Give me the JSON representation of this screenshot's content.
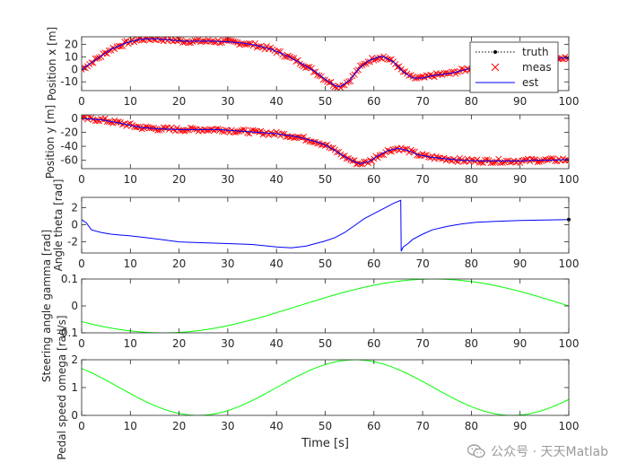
{
  "chart_data": [
    {
      "type": "line",
      "ylabel": "Position x [m]",
      "xlim": [
        0,
        100
      ],
      "ylim": [
        -17,
        26
      ],
      "yticks": [
        -10,
        0,
        10,
        20
      ],
      "xticks": [
        0,
        10,
        20,
        30,
        40,
        50,
        60,
        70,
        80,
        90,
        100
      ],
      "legend": {
        "position": "top-right",
        "entries": [
          "truth",
          "meas",
          "est"
        ]
      },
      "series": [
        {
          "name": "truth",
          "style": "dotted-black",
          "x": [
            0,
            3,
            6,
            9,
            12,
            15,
            18,
            21,
            24,
            27,
            30,
            33,
            36,
            39,
            42,
            45,
            48,
            50,
            52,
            53,
            55,
            57,
            59,
            61,
            62,
            64,
            66,
            68,
            70,
            72,
            74,
            76,
            78,
            80,
            82,
            84,
            86,
            88,
            90,
            92,
            94,
            96,
            98,
            100
          ],
          "y": [
            0,
            8,
            16,
            21,
            24,
            24.5,
            23.5,
            22.5,
            22.5,
            22.5,
            22,
            21,
            19,
            16,
            11,
            5,
            -2,
            -8,
            -13,
            -14,
            -9,
            1,
            7,
            10,
            10,
            6,
            -2,
            -7,
            -7,
            -5,
            -4,
            -3,
            -1,
            1,
            3,
            4.5,
            6,
            6.5,
            7,
            7.5,
            8,
            8.5,
            9,
            9
          ]
        },
        {
          "name": "est",
          "style": "solid-blue",
          "x": [
            0,
            3,
            6,
            9,
            12,
            15,
            18,
            21,
            24,
            27,
            30,
            33,
            36,
            39,
            42,
            45,
            48,
            50,
            52,
            53,
            55,
            57,
            59,
            61,
            62,
            64,
            66,
            68,
            70,
            72,
            74,
            76,
            78,
            80,
            82,
            84,
            86,
            88,
            90,
            92,
            94,
            96,
            98,
            100
          ],
          "y": [
            0,
            8,
            16,
            21,
            24,
            24.5,
            23.5,
            22.5,
            22.5,
            22.5,
            22,
            21,
            19,
            16,
            11,
            5,
            -2,
            -8,
            -13,
            -14,
            -9,
            1,
            7,
            10,
            10,
            6,
            -2,
            -7,
            -7,
            -5,
            -4,
            -3,
            -1,
            1,
            3,
            4.5,
            6,
            6.5,
            7,
            7.5,
            8,
            8.5,
            9,
            9
          ]
        }
      ]
    },
    {
      "type": "line",
      "ylabel": "Position y [m]",
      "xlim": [
        0,
        100
      ],
      "ylim": [
        -72,
        5
      ],
      "yticks": [
        -60,
        -40,
        -20,
        0
      ],
      "xticks": [
        0,
        10,
        20,
        30,
        40,
        50,
        60,
        70,
        80,
        90,
        100
      ],
      "series": [
        {
          "name": "truth",
          "style": "dotted-black",
          "x": [
            0,
            4,
            8,
            12,
            16,
            20,
            24,
            28,
            32,
            36,
            40,
            44,
            48,
            50,
            52,
            54,
            56,
            57,
            59,
            61,
            63,
            65,
            67,
            69,
            72,
            75,
            78,
            81,
            84,
            87,
            90,
            93,
            96,
            100
          ],
          "y": [
            0,
            -2,
            -7,
            -13,
            -15,
            -16,
            -16,
            -16,
            -18,
            -20,
            -22,
            -26,
            -33,
            -38,
            -46,
            -55,
            -62,
            -65,
            -62,
            -53,
            -46,
            -43,
            -46,
            -52,
            -56,
            -58,
            -60,
            -61,
            -61,
            -61,
            -61,
            -60,
            -60,
            -59
          ]
        },
        {
          "name": "est",
          "style": "solid-blue",
          "x": [
            0,
            4,
            8,
            12,
            16,
            20,
            24,
            28,
            32,
            36,
            40,
            44,
            48,
            50,
            52,
            54,
            56,
            57,
            59,
            61,
            63,
            65,
            67,
            69,
            72,
            75,
            78,
            81,
            84,
            87,
            90,
            93,
            96,
            100
          ],
          "y": [
            0,
            -2,
            -7,
            -13,
            -15,
            -16,
            -16,
            -16,
            -18,
            -20,
            -22,
            -26,
            -33,
            -38,
            -46,
            -55,
            -62,
            -65,
            -62,
            -53,
            -46,
            -43,
            -46,
            -52,
            -56,
            -58,
            -60,
            -61,
            -61,
            -61,
            -61,
            -60,
            -60,
            -59
          ]
        }
      ]
    },
    {
      "type": "line",
      "ylabel": "Angle theta [rad]",
      "xlim": [
        0,
        100
      ],
      "ylim": [
        -3.3,
        3.2
      ],
      "yticks": [
        -2,
        0,
        2
      ],
      "xticks": [
        0,
        10,
        20,
        30,
        40,
        50,
        60,
        70,
        80,
        90,
        100
      ],
      "series": [
        {
          "name": "truth",
          "style": "dotted-black",
          "x": [
            100
          ],
          "y": [
            0.6
          ]
        },
        {
          "name": "est",
          "style": "solid-blue",
          "x": [
            0,
            1,
            2,
            4,
            6,
            8,
            10,
            13,
            16,
            20,
            25,
            30,
            35,
            40,
            43,
            46,
            48,
            50,
            52,
            54,
            56,
            58,
            60,
            62,
            64,
            65.5,
            65.6,
            66,
            67,
            68,
            70,
            72,
            75,
            78,
            81,
            85,
            90,
            95,
            100
          ],
          "y": [
            0.6,
            0.2,
            -0.6,
            -0.9,
            -1.1,
            -1.2,
            -1.3,
            -1.5,
            -1.7,
            -2.0,
            -2.1,
            -2.2,
            -2.3,
            -2.6,
            -2.7,
            -2.5,
            -2.2,
            -1.9,
            -1.5,
            -0.9,
            -0.1,
            0.7,
            1.3,
            1.9,
            2.5,
            2.85,
            -3.1,
            -2.6,
            -2.2,
            -1.7,
            -1.1,
            -0.6,
            -0.2,
            0.1,
            0.3,
            0.4,
            0.5,
            0.55,
            0.6
          ]
        }
      ]
    },
    {
      "type": "line",
      "ylabel": "Steering angle gamma [rad]",
      "xlim": [
        0,
        100
      ],
      "ylim": [
        -0.1,
        0.1
      ],
      "yticks": [
        -0.1,
        0,
        0.1
      ],
      "xticks": [
        0,
        10,
        20,
        30,
        40,
        50,
        60,
        70,
        80,
        90,
        100
      ],
      "series": [
        {
          "name": "gamma",
          "style": "solid-green",
          "function": "0.1*sin(2*pi*(t-44.5)/111)"
        }
      ]
    },
    {
      "type": "line",
      "ylabel": "Pedal speed omega [rad/s]",
      "xlabel": "Time [s]",
      "xlim": [
        0,
        100
      ],
      "ylim": [
        0,
        2
      ],
      "yticks": [
        0,
        1,
        2
      ],
      "xticks": [
        0,
        10,
        20,
        30,
        40,
        50,
        60,
        70,
        80,
        90,
        100
      ],
      "series": [
        {
          "name": "omega",
          "style": "solid-green",
          "function": "1+sin(2*pi*(t-40)/64.5)"
        }
      ]
    }
  ],
  "colors": {
    "truth": "#000000",
    "meas": "#ff0000",
    "est": "#0000ff",
    "green": "#00ff00",
    "axis": "#262626"
  },
  "watermark": {
    "text": "公众号 · 天天Matlab",
    "icon": "wechat-icon"
  }
}
